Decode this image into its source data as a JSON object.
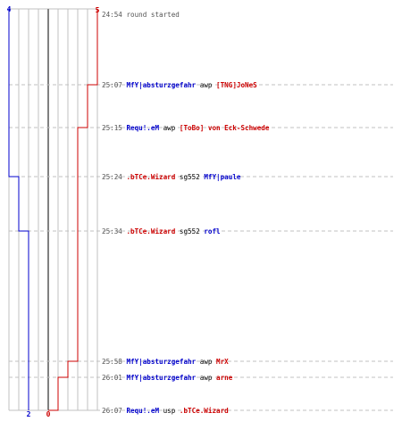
{
  "colors": {
    "team_a": "#0000cc",
    "team_b": "#cc0000",
    "time": "#555555",
    "neutral": "#000000",
    "grid": "#c0c0c0",
    "center": "#808080"
  },
  "scores": {
    "team_a_start": "4",
    "team_b_start": "5",
    "team_a_end": "2",
    "team_b_end": "0"
  },
  "events": [
    {
      "time": "24:54",
      "parts": [
        {
          "text": "round started",
          "team": "neutral"
        }
      ]
    },
    {
      "time": "25:07",
      "parts": [
        {
          "text": "MfY|absturzgefahr",
          "team": "a"
        },
        {
          "text": " awp ",
          "team": "neutral"
        },
        {
          "text": "[TNG]JoNeS",
          "team": "b"
        }
      ]
    },
    {
      "time": "25:15",
      "parts": [
        {
          "text": "Requ!.eM",
          "team": "a"
        },
        {
          "text": " awp ",
          "team": "neutral"
        },
        {
          "text": "[ToBo] von Eck-Schwede",
          "team": "b"
        }
      ]
    },
    {
      "time": "25:24",
      "parts": [
        {
          "text": ".bTCe.Wizard",
          "team": "b"
        },
        {
          "text": " sg552 ",
          "team": "neutral"
        },
        {
          "text": "MfY|paule",
          "team": "a"
        }
      ]
    },
    {
      "time": "25:34",
      "parts": [
        {
          "text": ".bTCe.Wizard",
          "team": "b"
        },
        {
          "text": " sg552 ",
          "team": "neutral"
        },
        {
          "text": "rofl",
          "team": "a"
        }
      ]
    },
    {
      "time": "25:58",
      "parts": [
        {
          "text": "MfY|absturzgefahr",
          "team": "a"
        },
        {
          "text": " awp ",
          "team": "neutral"
        },
        {
          "text": "MrX",
          "team": "b"
        }
      ]
    },
    {
      "time": "26:01",
      "parts": [
        {
          "text": "MfY|absturzgefahr",
          "team": "a"
        },
        {
          "text": " awp ",
          "team": "neutral"
        },
        {
          "text": "arne",
          "team": "b"
        }
      ]
    },
    {
      "time": "26:07",
      "parts": [
        {
          "text": "Requ!.eM",
          "team": "a"
        },
        {
          "text": " usp ",
          "team": "neutral"
        },
        {
          "text": ".bTCe.Wizard",
          "team": "b"
        }
      ]
    }
  ],
  "team_a_alive": [
    4,
    4,
    4,
    3,
    2,
    2,
    2,
    2
  ],
  "team_b_alive": [
    5,
    4,
    3,
    3,
    3,
    2,
    1,
    0
  ]
}
